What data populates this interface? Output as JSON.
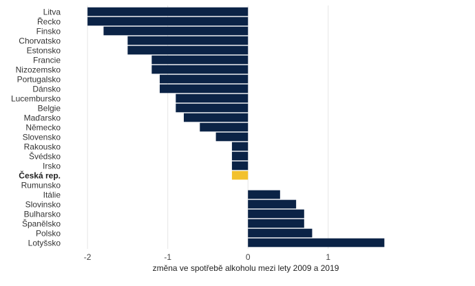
{
  "chart_data": {
    "type": "bar",
    "orientation": "horizontal",
    "categories": [
      "Litva",
      "Řecko",
      "Finsko",
      "Chorvatsko",
      "Estonsko",
      "Francie",
      "Nizozemsko",
      "Portugalsko",
      "Dánsko",
      "Lucembursko",
      "Belgie",
      "Maďarsko",
      "Německo",
      "Slovensko",
      "Rakousko",
      "Švédsko",
      "Irsko",
      "Česká rep.",
      "Rumunsko",
      "Itálie",
      "Slovinsko",
      "Bulharsko",
      "Španělsko",
      "Polsko",
      "Lotyšsko"
    ],
    "values": [
      -2.0,
      -2.0,
      -1.8,
      -1.5,
      -1.5,
      -1.2,
      -1.2,
      -1.1,
      -1.1,
      -0.9,
      -0.9,
      -0.8,
      -0.6,
      -0.4,
      -0.2,
      -0.2,
      -0.2,
      -0.2,
      0.0,
      0.4,
      0.6,
      0.7,
      0.7,
      0.8,
      1.7
    ],
    "highlight_category": "Česká rep.",
    "colors": {
      "default": "#0b2346",
      "highlight": "#f2c12e",
      "grid": "#e6e6e6"
    },
    "xlabel": "změna ve spotřebě alkoholu mezi lety 2009 a 2019",
    "ylabel": "",
    "xlim": [
      -2.25,
      1.8
    ],
    "xticks": [
      -2,
      -1,
      0,
      1
    ],
    "xtick_labels": [
      "-2",
      "-1",
      "0",
      "1"
    ],
    "grid": true,
    "legend": false
  }
}
